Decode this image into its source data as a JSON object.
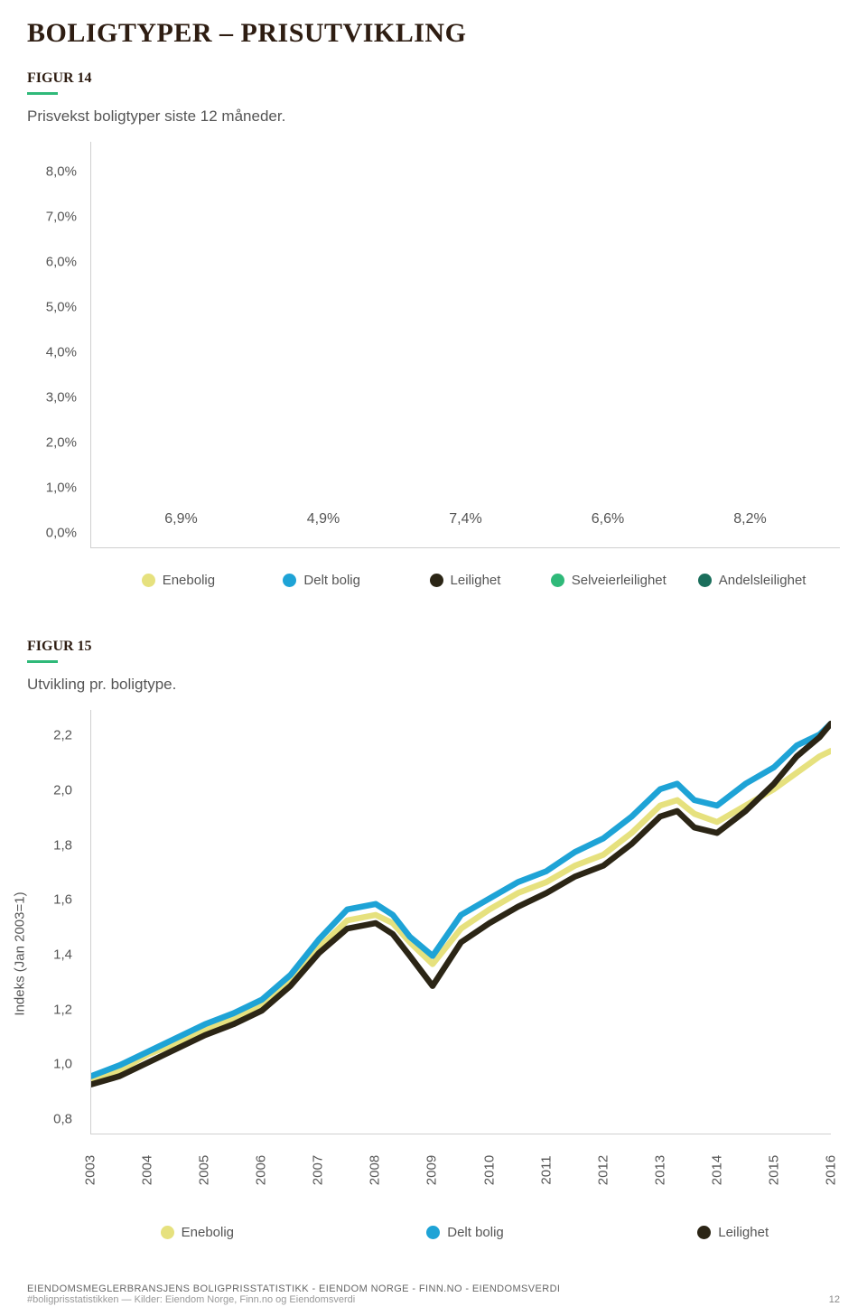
{
  "page_title": "BOLIGTYPER – PRISUTVIKLING",
  "page_number": "12",
  "footer": {
    "line1": "EIENDOMSMEGLERBRANSJENS BOLIGPRISSTATISTIKK - EIENDOM NORGE - FINN.NO - EIENDOMSVERDI",
    "line2": "#boligprisstatistikken — Kilder: Eiendom Norge, Finn.no og Eiendomsverdi"
  },
  "figure14": {
    "label": "FIGUR 14",
    "subtitle": "Prisvekst boligtyper siste 12 måneder.",
    "type": "bar",
    "ylim": [
      0,
      9
    ],
    "yticks": [
      "0,0%",
      "1,0%",
      "2,0%",
      "3,0%",
      "4,0%",
      "5,0%",
      "6,0%",
      "7,0%",
      "8,0%"
    ],
    "ytick_values": [
      0,
      1,
      2,
      3,
      4,
      5,
      6,
      7,
      8
    ],
    "bars": [
      {
        "label": "Enebolig",
        "value": 6.9,
        "display": "6,9%",
        "color": "#e6e17e"
      },
      {
        "label": "Delt bolig",
        "value": 4.9,
        "display": "4,9%",
        "color": "#1ea3d6"
      },
      {
        "label": "Leilighet",
        "value": 7.4,
        "display": "7,4%",
        "color": "#2b2515"
      },
      {
        "label": "Selveierleilighet",
        "value": 6.6,
        "display": "6,6%",
        "color": "#2fb979"
      },
      {
        "label": "Andelsleilighet",
        "value": 8.2,
        "display": "8,2%",
        "color": "#1a6e5b"
      }
    ],
    "bar_width_pct": 14,
    "bar_gap_pct": 6,
    "label_fontsize": 15,
    "value_fontsize": 16
  },
  "figure15": {
    "label": "FIGUR 15",
    "subtitle": "Utvikling pr. boligtype.",
    "type": "line",
    "ylabel": "Indeks (Jan 2003=1)",
    "ylim": [
      0.8,
      2.35
    ],
    "yticks": [
      "0,8",
      "1,0",
      "1,2",
      "1,4",
      "1,6",
      "1,8",
      "2,0",
      "2,2"
    ],
    "ytick_values": [
      0.8,
      1.0,
      1.2,
      1.4,
      1.6,
      1.8,
      2.0,
      2.2
    ],
    "xlim": [
      2003,
      2016
    ],
    "xticks": [
      "2003",
      "2004",
      "2005",
      "2006",
      "2007",
      "2008",
      "2009",
      "2010",
      "2011",
      "2012",
      "2013",
      "2014",
      "2015",
      "2016"
    ],
    "legend": [
      {
        "label": "Enebolig",
        "color": "#e6e17e"
      },
      {
        "label": "Delt bolig",
        "color": "#1ea3d6"
      },
      {
        "label": "Leilighet",
        "color": "#2b2515"
      }
    ],
    "line_width": 2.2,
    "series": {
      "enebolig": {
        "color": "#e6e17e",
        "x": [
          2003.0,
          2003.5,
          2004.0,
          2004.5,
          2005.0,
          2005.5,
          2006.0,
          2006.5,
          2007.0,
          2007.5,
          2008.0,
          2008.3,
          2008.6,
          2009.0,
          2009.5,
          2010.0,
          2010.5,
          2011.0,
          2011.5,
          2012.0,
          2012.5,
          2013.0,
          2013.3,
          2013.6,
          2014.0,
          2014.5,
          2015.0,
          2015.4,
          2015.8,
          2016.0
        ],
        "y": [
          1.0,
          1.03,
          1.09,
          1.13,
          1.18,
          1.22,
          1.27,
          1.36,
          1.48,
          1.58,
          1.6,
          1.57,
          1.5,
          1.42,
          1.55,
          1.62,
          1.68,
          1.72,
          1.78,
          1.82,
          1.9,
          2.0,
          2.02,
          1.97,
          1.94,
          2.0,
          2.06,
          2.12,
          2.18,
          2.2
        ]
      },
      "delt": {
        "color": "#1ea3d6",
        "x": [
          2003.0,
          2003.5,
          2004.0,
          2004.5,
          2005.0,
          2005.5,
          2006.0,
          2006.5,
          2007.0,
          2007.5,
          2008.0,
          2008.3,
          2008.6,
          2009.0,
          2009.5,
          2010.0,
          2010.5,
          2011.0,
          2011.5,
          2012.0,
          2012.5,
          2013.0,
          2013.3,
          2013.6,
          2014.0,
          2014.5,
          2015.0,
          2015.4,
          2015.8,
          2016.0
        ],
        "y": [
          1.01,
          1.05,
          1.1,
          1.15,
          1.2,
          1.24,
          1.29,
          1.38,
          1.51,
          1.62,
          1.64,
          1.6,
          1.52,
          1.45,
          1.6,
          1.66,
          1.72,
          1.76,
          1.83,
          1.88,
          1.96,
          2.06,
          2.08,
          2.02,
          2.0,
          2.08,
          2.14,
          2.22,
          2.26,
          2.3
        ]
      },
      "leilighet": {
        "color": "#2b2515",
        "x": [
          2003.0,
          2003.5,
          2004.0,
          2004.5,
          2005.0,
          2005.5,
          2006.0,
          2006.5,
          2007.0,
          2007.5,
          2008.0,
          2008.3,
          2008.6,
          2009.0,
          2009.5,
          2010.0,
          2010.5,
          2011.0,
          2011.5,
          2012.0,
          2012.5,
          2013.0,
          2013.3,
          2013.6,
          2014.0,
          2014.5,
          2015.0,
          2015.4,
          2015.8,
          2016.0
        ],
        "y": [
          0.98,
          1.01,
          1.06,
          1.11,
          1.16,
          1.2,
          1.25,
          1.34,
          1.46,
          1.55,
          1.57,
          1.53,
          1.45,
          1.34,
          1.5,
          1.57,
          1.63,
          1.68,
          1.74,
          1.78,
          1.86,
          1.96,
          1.98,
          1.92,
          1.9,
          1.98,
          2.08,
          2.18,
          2.25,
          2.3
        ]
      }
    }
  },
  "colors": {
    "accent": "#2fb979",
    "axis": "#cfcfcf",
    "text": "#555555",
    "title": "#2e1d12",
    "background": "#ffffff"
  }
}
